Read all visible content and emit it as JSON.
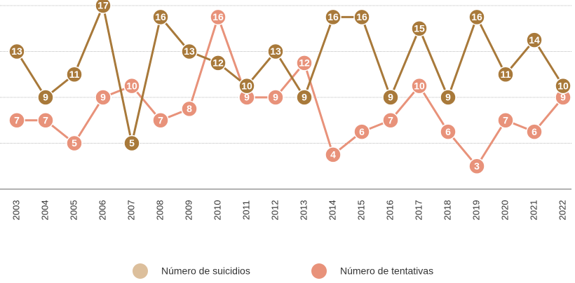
{
  "chart_data": {
    "type": "line",
    "categories": [
      "2003",
      "2004",
      "2005",
      "2006",
      "2007",
      "2008",
      "2009",
      "2010",
      "2011",
      "2012",
      "2013",
      "2014",
      "2015",
      "2016",
      "2017",
      "2018",
      "2019",
      "2020",
      "2021",
      "2022"
    ],
    "series": [
      {
        "name": "Número de suicidios",
        "color": "#a8793a",
        "legend_color": "#dcbf9c",
        "values": [
          13,
          9,
          11,
          17,
          5,
          16,
          13,
          12,
          10,
          13,
          9,
          16,
          16,
          9,
          15,
          9,
          16,
          11,
          14,
          10
        ]
      },
      {
        "name": "Número de tentativas",
        "color": "#e8927a",
        "legend_color": "#e8927a",
        "values": [
          7,
          7,
          5,
          9,
          10,
          7,
          8,
          16,
          9,
          9,
          12,
          4,
          6,
          7,
          10,
          6,
          3,
          7,
          6,
          9
        ]
      }
    ],
    "ylim": [
      1,
      17.7
    ],
    "yticks": [
      1,
      5,
      9,
      13,
      17
    ],
    "grid": true
  }
}
